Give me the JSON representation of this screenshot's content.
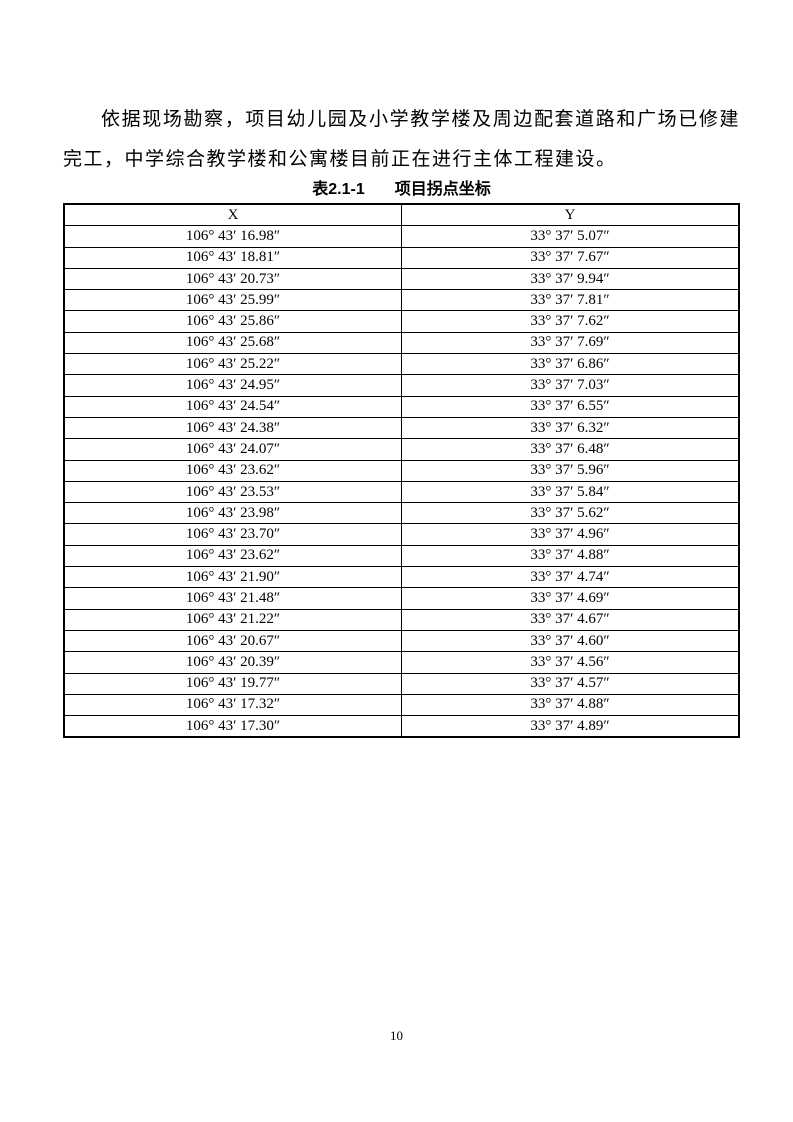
{
  "document": {
    "paragraph": "依据现场勘察，项目幼儿园及小学教学楼及周边配套道路和广场已修建完工，中学综合教学楼和公寓楼目前正在进行主体工程建设。",
    "page_number": "10"
  },
  "table": {
    "caption_label": "表2.1-1",
    "caption_title": "项目拐点坐标",
    "headers": [
      "X",
      "Y"
    ],
    "rows": [
      [
        "106° 43′ 16.98″",
        "33° 37′ 5.07″"
      ],
      [
        "106° 43′ 18.81″",
        "33° 37′ 7.67″"
      ],
      [
        "106° 43′ 20.73″",
        "33° 37′ 9.94″"
      ],
      [
        "106° 43′ 25.99″",
        "33° 37′ 7.81″"
      ],
      [
        "106° 43′ 25.86″",
        "33° 37′ 7.62″"
      ],
      [
        "106° 43′ 25.68″",
        "33° 37′ 7.69″"
      ],
      [
        "106° 43′ 25.22″",
        "33° 37′ 6.86″"
      ],
      [
        "106° 43′ 24.95″",
        "33° 37′ 7.03″"
      ],
      [
        "106° 43′ 24.54″",
        "33° 37′ 6.55″"
      ],
      [
        "106° 43′ 24.38″",
        "33° 37′ 6.32″"
      ],
      [
        "106° 43′ 24.07″",
        "33° 37′ 6.48″"
      ],
      [
        "106° 43′ 23.62″",
        "33° 37′ 5.96″"
      ],
      [
        "106° 43′ 23.53″",
        "33° 37′ 5.84″"
      ],
      [
        "106° 43′ 23.98″",
        "33° 37′ 5.62″"
      ],
      [
        "106° 43′ 23.70″",
        "33° 37′ 4.96″"
      ],
      [
        "106° 43′ 23.62″",
        "33° 37′ 4.88″"
      ],
      [
        "106° 43′ 21.90″",
        "33° 37′ 4.74″"
      ],
      [
        "106° 43′ 21.48″",
        "33° 37′ 4.69″"
      ],
      [
        "106° 43′ 21.22″",
        "33° 37′ 4.67″"
      ],
      [
        "106° 43′ 20.67″",
        "33° 37′ 4.60″"
      ],
      [
        "106° 43′ 20.39″",
        "33° 37′ 4.56″"
      ],
      [
        "106° 43′ 19.77″",
        "33° 37′ 4.57″"
      ],
      [
        "106° 43′ 17.32″",
        "33° 37′ 4.88″"
      ],
      [
        "106° 43′ 17.30″",
        "33° 37′ 4.89″"
      ]
    ]
  }
}
